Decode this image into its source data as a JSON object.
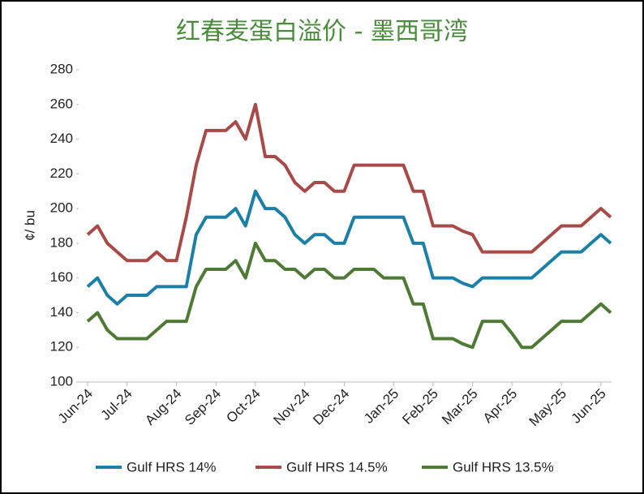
{
  "chart_data": {
    "type": "line",
    "title": "红春麦蛋白溢价 - 墨西哥湾",
    "ylabel": "¢/ bu",
    "categories": [
      "Jun-24",
      null,
      null,
      null,
      "Jul-24",
      null,
      null,
      null,
      null,
      "Aug-24",
      null,
      null,
      null,
      "Sep-24",
      null,
      null,
      null,
      "Oct-24",
      null,
      null,
      null,
      null,
      "Nov-24",
      null,
      null,
      null,
      "Dec-24",
      null,
      null,
      null,
      null,
      "Jan-25",
      null,
      null,
      null,
      "Feb-25",
      null,
      null,
      null,
      "Mar-25",
      null,
      null,
      null,
      "Apr-25",
      null,
      null,
      null,
      null,
      "May-25",
      null,
      null,
      null,
      "Jun-25",
      null
    ],
    "series": [
      {
        "name": "Gulf HRS 14%",
        "color": "#1b7fa6",
        "values": [
          155,
          160,
          150,
          145,
          150,
          150,
          150,
          155,
          155,
          155,
          155,
          185,
          195,
          195,
          195,
          200,
          190,
          210,
          200,
          200,
          195,
          185,
          180,
          185,
          185,
          180,
          180,
          195,
          195,
          195,
          195,
          195,
          195,
          180,
          180,
          160,
          160,
          160,
          157,
          155,
          160,
          160,
          160,
          160,
          160,
          160,
          165,
          170,
          175,
          175,
          175,
          180,
          185,
          180
        ]
      },
      {
        "name": "Gulf HRS 14.5%",
        "color": "#a84a48",
        "values": [
          185,
          190,
          180,
          175,
          170,
          170,
          170,
          175,
          170,
          170,
          195,
          225,
          245,
          245,
          245,
          250,
          240,
          260,
          230,
          230,
          225,
          215,
          210,
          215,
          215,
          210,
          210,
          225,
          225,
          225,
          225,
          225,
          225,
          210,
          210,
          190,
          190,
          190,
          187,
          185,
          175,
          175,
          175,
          175,
          175,
          175,
          180,
          185,
          190,
          190,
          190,
          195,
          200,
          195
        ]
      },
      {
        "name": "Gulf HRS 13.5%",
        "color": "#4e7a35",
        "values": [
          135,
          140,
          130,
          125,
          125,
          125,
          125,
          130,
          135,
          135,
          135,
          155,
          165,
          165,
          165,
          170,
          160,
          180,
          170,
          170,
          165,
          165,
          160,
          165,
          165,
          160,
          160,
          165,
          165,
          165,
          160,
          160,
          160,
          145,
          145,
          125,
          125,
          125,
          122,
          120,
          135,
          135,
          135,
          128,
          120,
          120,
          125,
          130,
          135,
          135,
          135,
          140,
          145,
          140
        ]
      }
    ],
    "ylim": [
      100,
      280
    ],
    "yticks": [
      100,
      120,
      140,
      160,
      180,
      200,
      220,
      240,
      260,
      280
    ],
    "grid": false
  }
}
